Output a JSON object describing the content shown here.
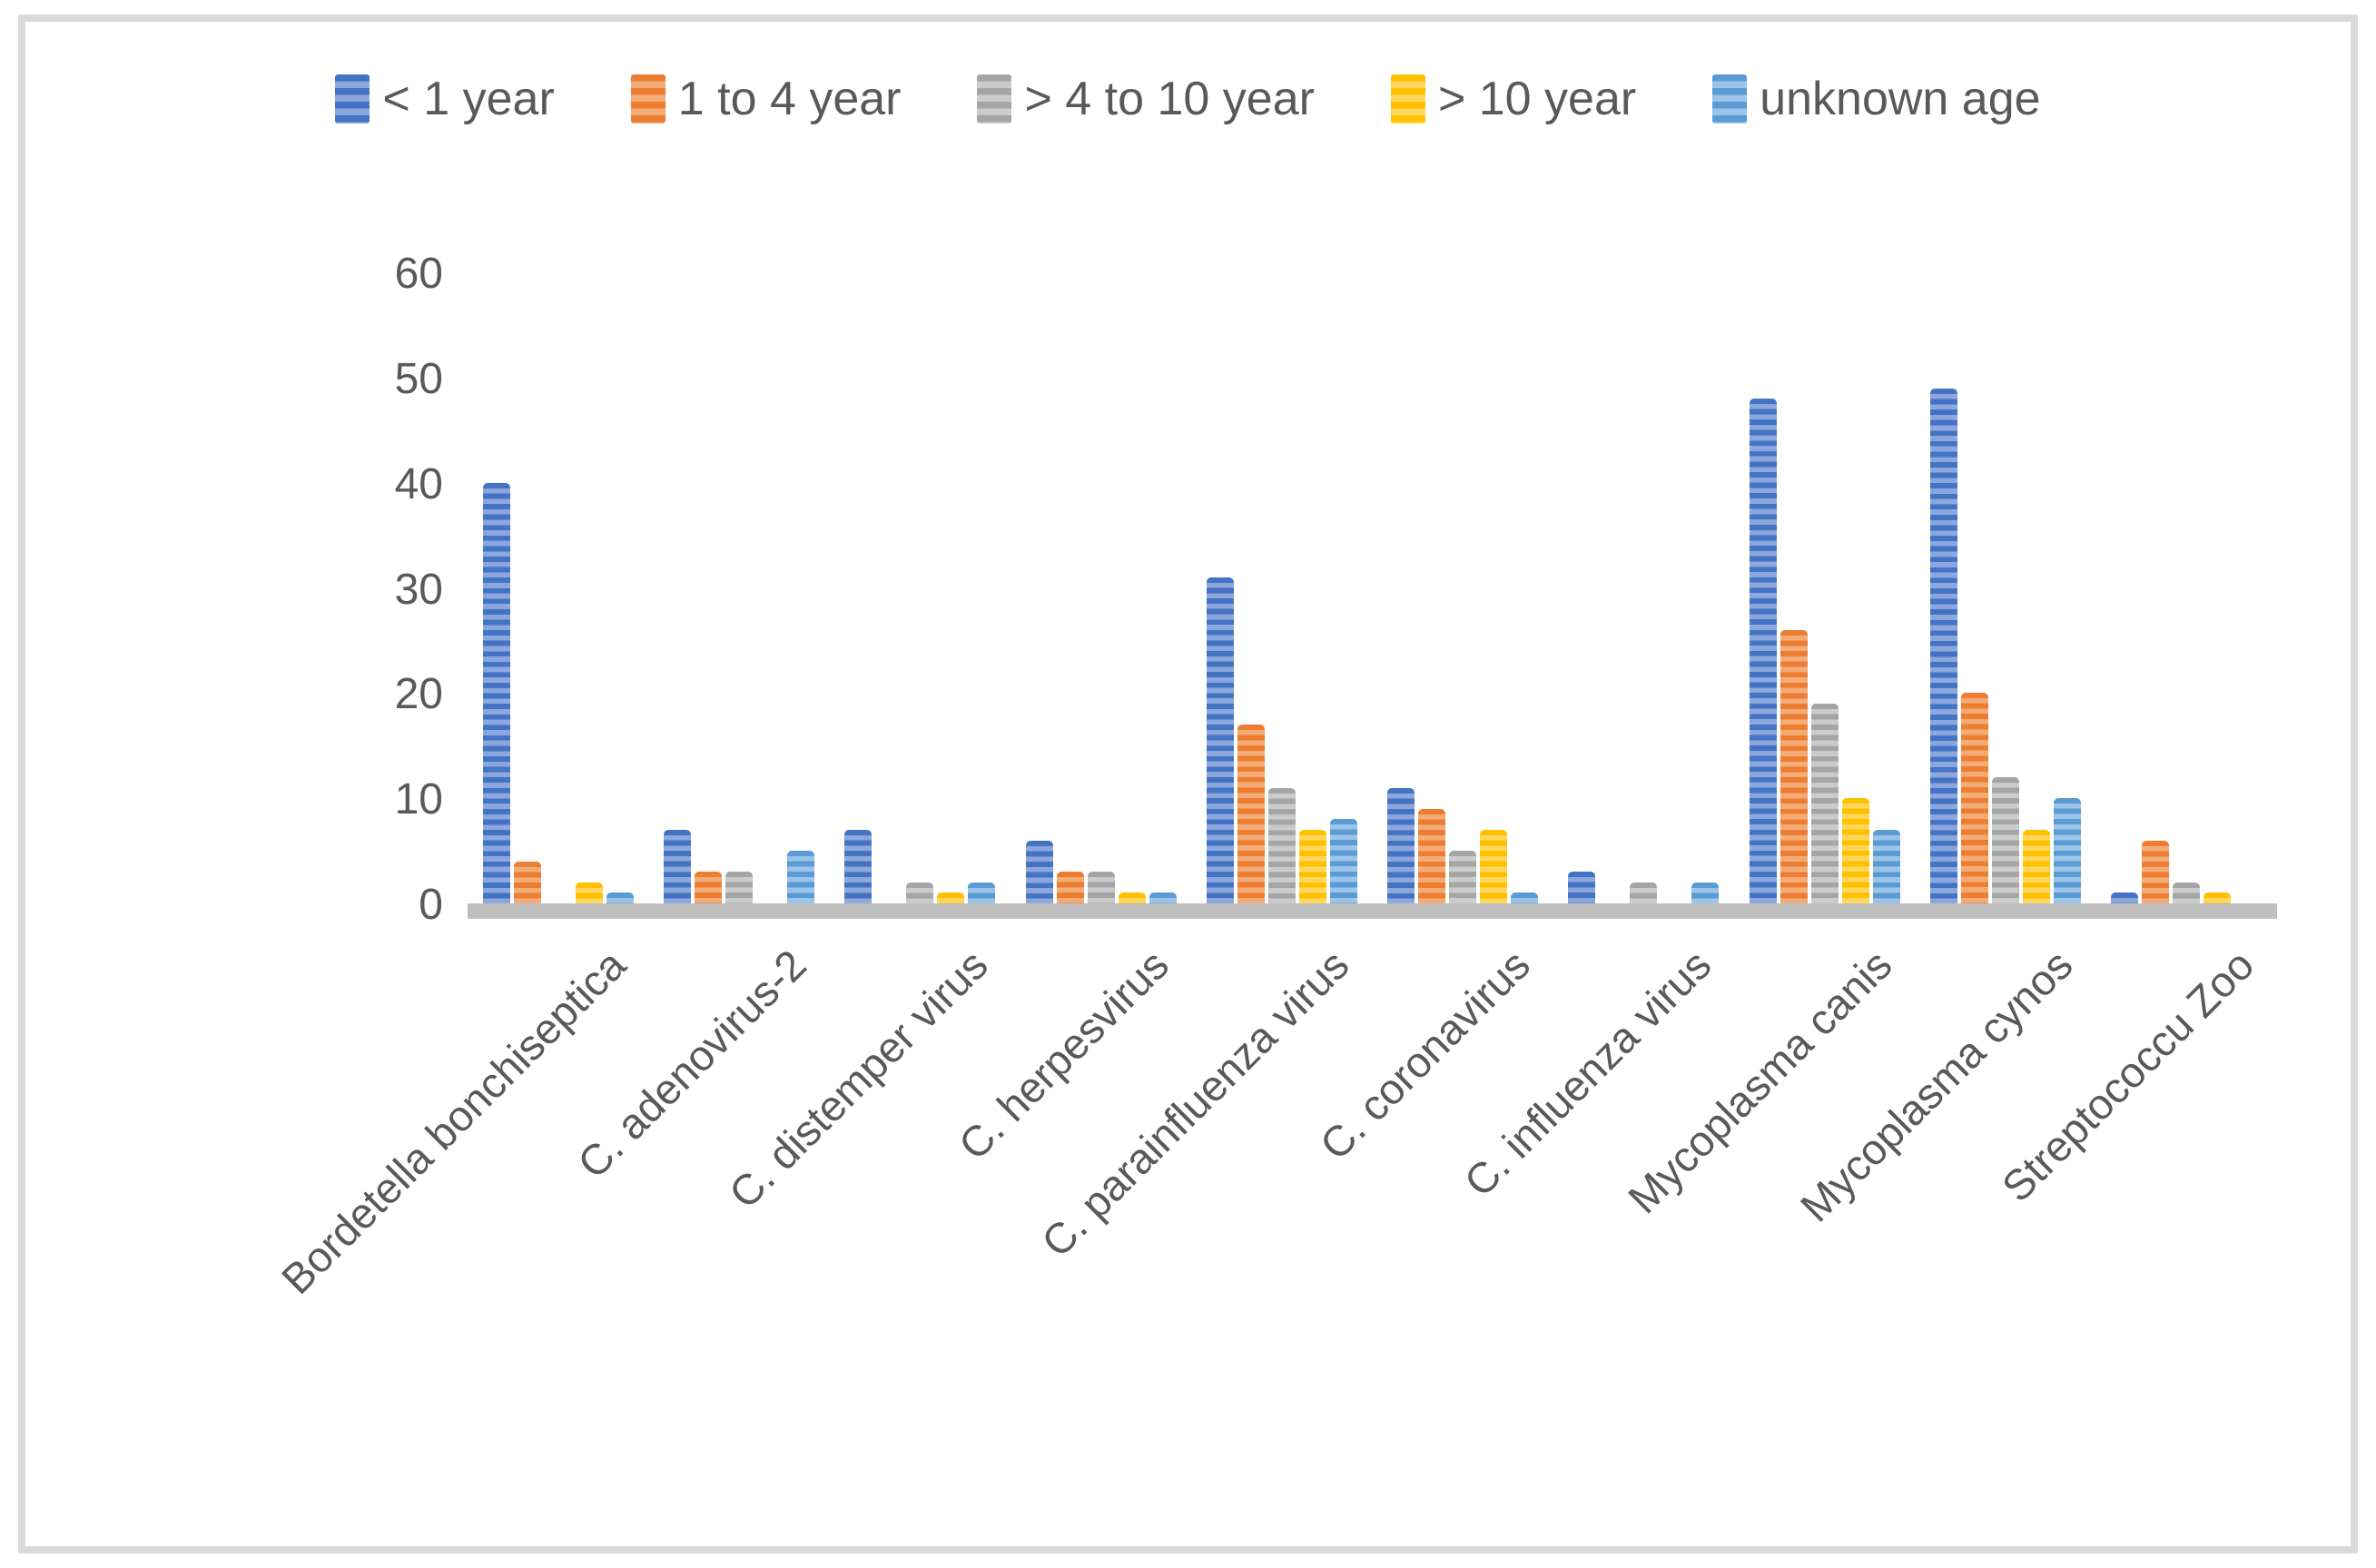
{
  "chart_data": {
    "type": "bar",
    "title": "",
    "xlabel": "",
    "ylabel": "",
    "ylim": [
      0,
      60
    ],
    "yticks": [
      0,
      10,
      20,
      30,
      40,
      50,
      60
    ],
    "grid": false,
    "legend_position": "top-center",
    "bar_style": "horizontal-striped",
    "categories": [
      "Bordetella bonchiseptica",
      "C. adenovirus-2",
      "C. distemper virus",
      "C. herpesvirus",
      "C. parainfluenza virus",
      "C. coronavirus",
      "C. influenza virus",
      "Mycoplasma canis",
      "Mycoplasma cynos",
      "Streptococcu Zoo"
    ],
    "series": [
      {
        "name": "< 1 year",
        "color": "#4472C4",
        "color_light": "#8BA7DC",
        "values": [
          40,
          7,
          7,
          6,
          31,
          11,
          3,
          48,
          49,
          1
        ]
      },
      {
        "name": "1 to 4 year",
        "color": "#ED7D31",
        "color_light": "#F3AB78",
        "values": [
          4,
          3,
          0,
          3,
          17,
          9,
          0,
          26,
          20,
          6
        ]
      },
      {
        "name": "> 4 to 10 year",
        "color": "#A5A5A5",
        "color_light": "#CBCBCB",
        "values": [
          0,
          3,
          2,
          3,
          11,
          5,
          2,
          19,
          12,
          2
        ]
      },
      {
        "name": "> 10 year",
        "color": "#FFC000",
        "color_light": "#FFD75E",
        "values": [
          2,
          0,
          1,
          1,
          7,
          7,
          0,
          10,
          7,
          1
        ]
      },
      {
        "name": "unknown age",
        "color": "#5B9BD5",
        "color_light": "#9BC4E8",
        "values": [
          1,
          5,
          2,
          1,
          8,
          1,
          2,
          7,
          10,
          0
        ]
      }
    ],
    "axis_text_color": "#595959",
    "baseline_color": "#BFBFBF",
    "frame_border_color": "#D9D9D9"
  }
}
